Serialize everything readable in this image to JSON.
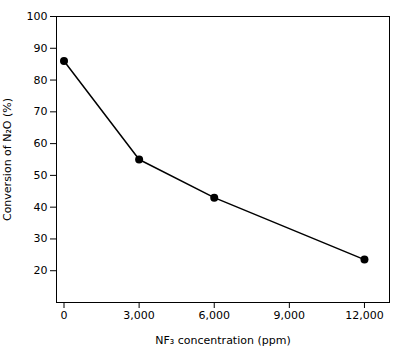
{
  "chart_data": {
    "type": "line",
    "x": [
      0,
      3000,
      6000,
      12000
    ],
    "values": [
      86,
      55,
      43,
      23.5
    ],
    "xlim": [
      -300,
      13000
    ],
    "ylim": [
      10,
      100
    ],
    "xticks": [
      0,
      {
        "value": 3000,
        "label": "3,000"
      },
      {
        "value": 6000,
        "label": "6,000"
      },
      {
        "value": 9000,
        "label": "9,000"
      },
      {
        "value": 12000,
        "label": "12,000"
      }
    ],
    "yticks": [
      20,
      30,
      40,
      50,
      60,
      70,
      80,
      90,
      100
    ],
    "xlabel": "NF₃ concentration (ppm)",
    "ylabel": "Conversion of N₂O (%)",
    "marker": "o",
    "grid": false
  }
}
